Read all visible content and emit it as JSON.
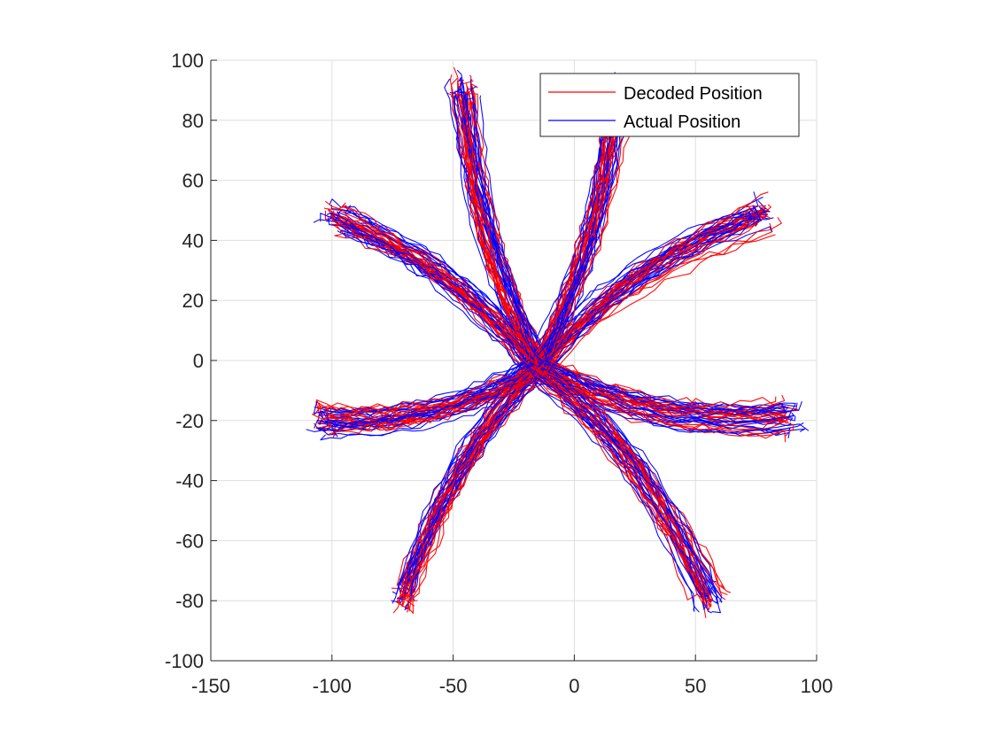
{
  "chart_data": {
    "type": "line",
    "title": "",
    "xlabel": "",
    "ylabel": "",
    "xlim": [
      -150,
      100
    ],
    "ylim": [
      -100,
      100
    ],
    "xticks": [
      -150,
      -100,
      -50,
      0,
      50,
      100
    ],
    "yticks": [
      -100,
      -80,
      -60,
      -40,
      -20,
      0,
      20,
      40,
      60,
      80,
      100
    ],
    "grid": true,
    "legend_location": "top-right",
    "center_region": [
      -15,
      -2
    ],
    "series": [
      {
        "name": "Decoded Position",
        "color": "#ff0000"
      },
      {
        "name": "Actual Position",
        "color": "#0000ff"
      }
    ],
    "reach_targets": [
      {
        "direction": "up-left",
        "end": [
          -46,
          90
        ]
      },
      {
        "direction": "up-right",
        "end": [
          17,
          88
        ]
      },
      {
        "direction": "right-up",
        "end": [
          78,
          49
        ]
      },
      {
        "direction": "right",
        "end": [
          88,
          -18
        ]
      },
      {
        "direction": "down-right",
        "end": [
          56,
          -79
        ]
      },
      {
        "direction": "down-left",
        "end": [
          -70,
          -78
        ]
      },
      {
        "direction": "left",
        "end": [
          -103,
          -20
        ]
      },
      {
        "direction": "left-up",
        "end": [
          -98,
          47
        ]
      }
    ]
  }
}
